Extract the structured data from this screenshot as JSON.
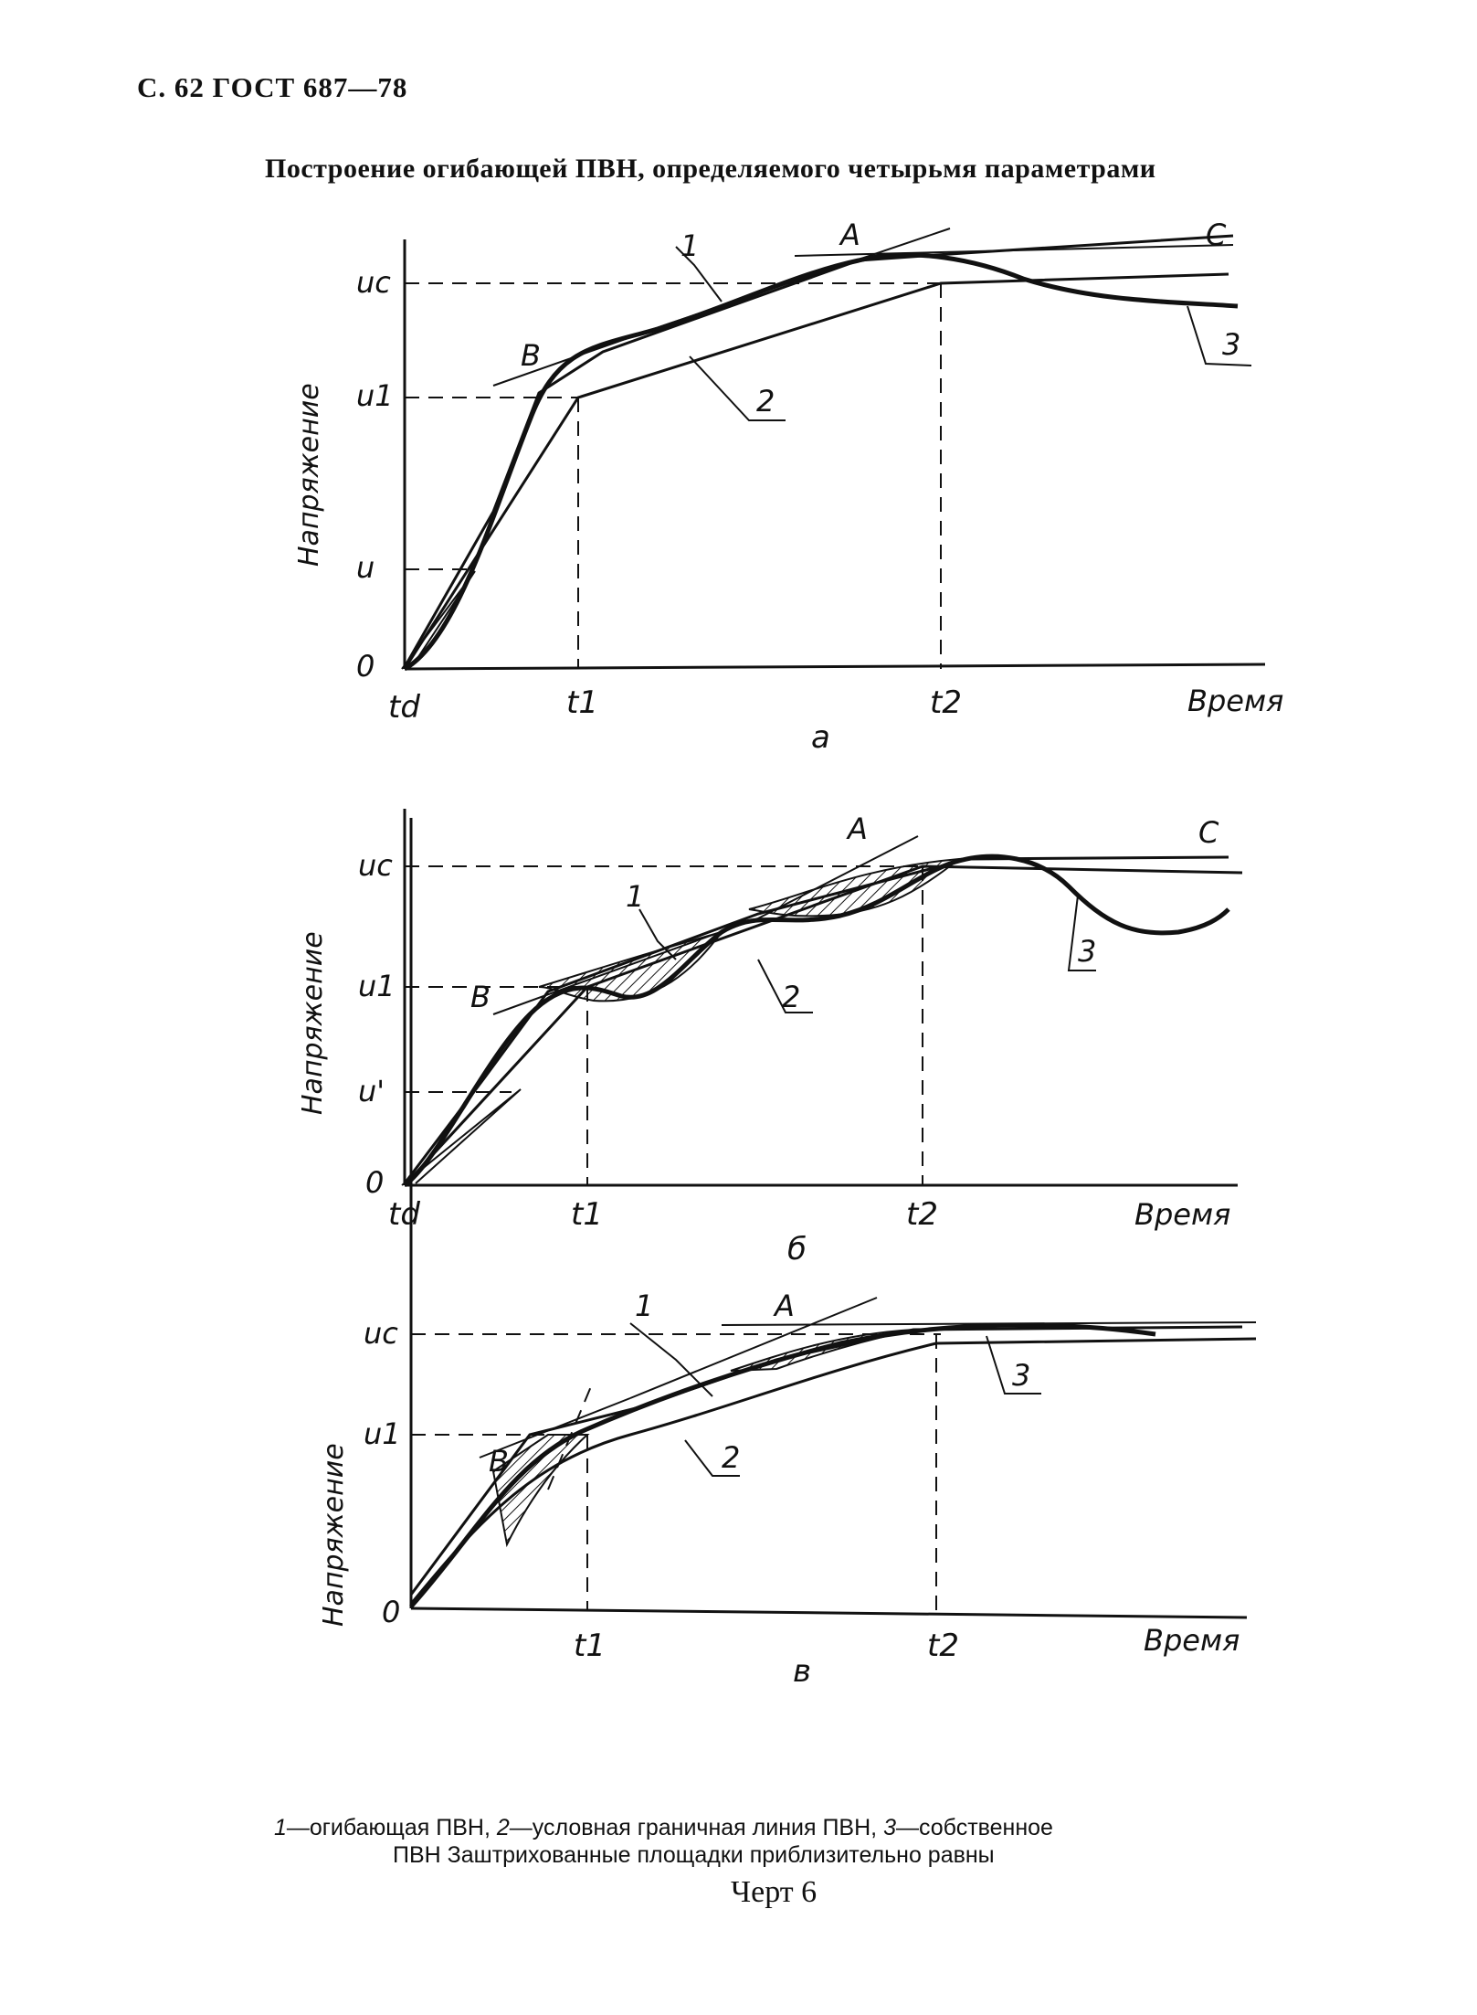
{
  "header": {
    "page_ref": "С. 62 ГОСТ 687—78"
  },
  "title": "Построение огибающей ПВН, определяемого четырьмя параметрами",
  "axis": {
    "y_label": "Напряжение",
    "x_label": "Время"
  },
  "panels": [
    {
      "id": "a",
      "sub_label": "а",
      "y_ticks": [
        "0",
        "u",
        "u1",
        "uc"
      ],
      "x_ticks": [
        "td",
        "t1",
        "t2"
      ],
      "curve_labels": [
        "1",
        "2",
        "3"
      ],
      "point_labels": [
        "A",
        "B",
        "C"
      ]
    },
    {
      "id": "b",
      "sub_label": "б",
      "y_ticks": [
        "0",
        "u'",
        "u1",
        "uc"
      ],
      "x_ticks": [
        "td",
        "t1",
        "t2"
      ],
      "curve_labels": [
        "1",
        "2",
        "3"
      ],
      "point_labels": [
        "A",
        "B",
        "C"
      ]
    },
    {
      "id": "v",
      "sub_label": "в",
      "y_ticks": [
        "0",
        "u1",
        "uc"
      ],
      "x_ticks": [
        "t1",
        "t2"
      ],
      "curve_labels": [
        "1",
        "2",
        "3"
      ],
      "point_labels": [
        "A",
        "B"
      ]
    }
  ],
  "caption": {
    "n1": "1",
    "t1": "—огибающая ПВН,",
    "n2": "2",
    "t2": "—условная граничная линия ПВН,",
    "n3": "3",
    "t3": "—собственное",
    "line2": "ПВН Заштрихованные площадки приблизительно равны"
  },
  "figure_number": "Черт 6"
}
